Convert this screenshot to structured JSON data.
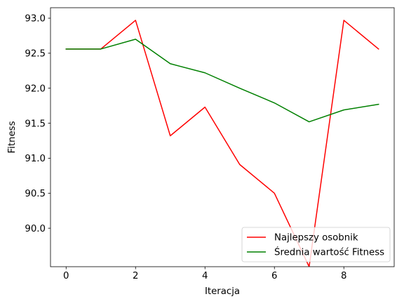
{
  "chart_data": {
    "type": "line",
    "title": "",
    "xlabel": "Iteracja",
    "ylabel": "Fitness",
    "xlim": [
      -0.45,
      9.45
    ],
    "ylim": [
      89.45,
      93.15
    ],
    "xticks": [
      0,
      2,
      4,
      6,
      8
    ],
    "xtick_labels": [
      "0",
      "2",
      "4",
      "6",
      "8"
    ],
    "yticks": [
      90.0,
      90.5,
      91.0,
      91.5,
      92.0,
      92.5,
      93.0
    ],
    "ytick_labels": [
      "90.0",
      "90.5",
      "91.0",
      "91.5",
      "92.0",
      "92.5",
      "93.0"
    ],
    "grid": false,
    "legend_position": "lower-right",
    "x": [
      0,
      1,
      2,
      3,
      4,
      5,
      6,
      7,
      8,
      9
    ],
    "series": [
      {
        "name": "Najlepszy osobnik",
        "color": "#ff0000",
        "values": [
          92.56,
          92.56,
          92.97,
          91.32,
          91.73,
          90.91,
          90.5,
          89.45,
          92.97,
          92.56
        ]
      },
      {
        "name": "Średnia wartość Fitness",
        "color": "#008000",
        "values": [
          92.56,
          92.56,
          92.7,
          92.35,
          92.22,
          92.0,
          91.79,
          91.52,
          91.69,
          91.77
        ]
      }
    ]
  }
}
